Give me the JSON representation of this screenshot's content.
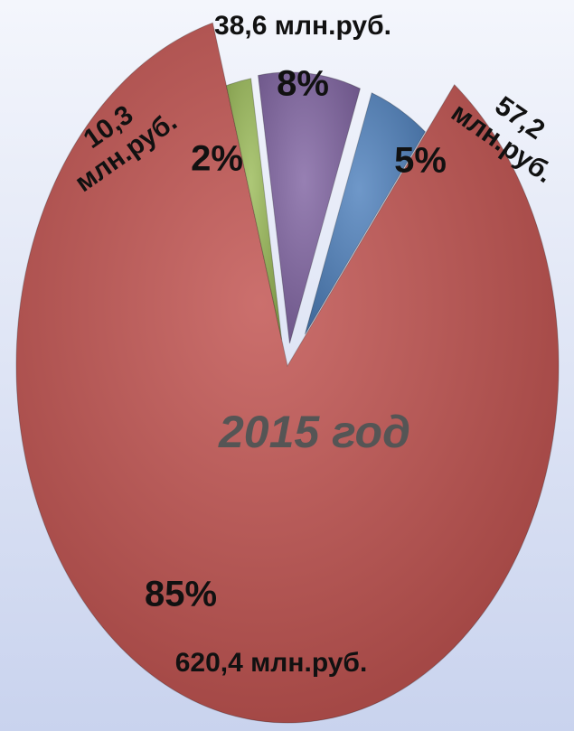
{
  "chart_data": {
    "type": "pie",
    "title": "2015 год",
    "categories": [
      "57,2 млн.руб.",
      "620,4 млн.руб.",
      "10,3 млн.руб.",
      "38,6 млн.руб."
    ],
    "values": [
      5,
      85,
      2,
      8
    ],
    "value_labels": [
      "5%",
      "85%",
      "2%",
      "8%"
    ],
    "colors": [
      "#4f81bd",
      "#c0504d",
      "#9bbb59",
      "#8064a2"
    ],
    "exploded": true
  }
}
